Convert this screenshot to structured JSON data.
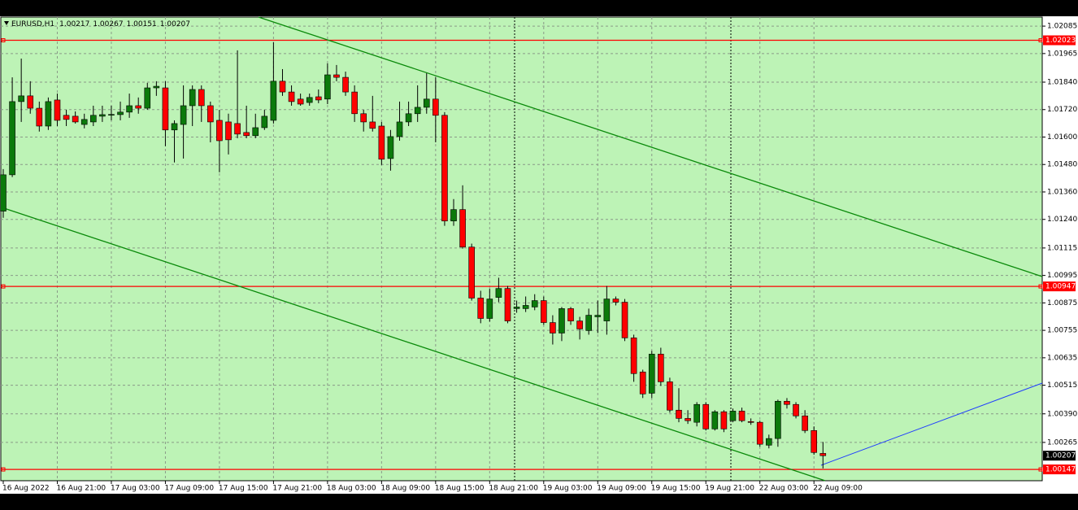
{
  "chart_data": {
    "type": "candlestick",
    "symbol": "EURUSD,H1",
    "categories": [
      "16 Aug 2022",
      null,
      null,
      null,
      null,
      null,
      "16 Aug 21:00",
      null,
      null,
      null,
      null,
      null,
      "17 Aug 03:00",
      null,
      null,
      null,
      null,
      null,
      "17 Aug 09:00",
      null,
      null,
      null,
      null,
      null,
      "17 Aug 15:00",
      null,
      null,
      null,
      null,
      null,
      "17 Aug 21:00",
      null,
      null,
      null,
      null,
      null,
      "18 Aug 03:00",
      null,
      null,
      null,
      null,
      null,
      "18 Aug 09:00",
      null,
      null,
      null,
      null,
      null,
      "18 Aug 15:00",
      null,
      null,
      null,
      null,
      null,
      "18 Aug 21:00",
      null,
      null,
      null,
      null,
      null,
      "19 Aug 03:00",
      null,
      null,
      null,
      null,
      null,
      "19 Aug 09:00",
      null,
      null,
      null,
      null,
      null,
      "19 Aug 15:00",
      null,
      null,
      null,
      null,
      null,
      "19 Aug 21:00",
      null,
      null,
      null,
      null,
      null,
      "22 Aug 03:00",
      null,
      null,
      null,
      null,
      null,
      "22 Aug 09:00",
      null
    ],
    "open": [
      1.01276,
      1.01435,
      1.01755,
      1.0178,
      1.01726,
      1.01648,
      1.01762,
      1.01695,
      1.01691,
      1.01655,
      1.01666,
      1.01691,
      1.01698,
      1.01698,
      1.01709,
      1.01737,
      1.01726,
      1.01815,
      1.01815,
      1.01631,
      1.01655,
      1.01737,
      1.01808,
      1.01737,
      1.01673,
      1.01666,
      1.01659,
      1.0162,
      1.01606,
      1.01641,
      1.01673,
      1.01844,
      1.01797,
      1.01766,
      1.01751,
      1.01776,
      1.01766,
      1.01872,
      1.01861,
      1.01797,
      1.01702,
      1.01666,
      1.01648,
      1.01506,
      1.01602,
      1.01666,
      1.01702,
      1.0173,
      1.01766,
      1.01695,
      1.01233,
      1.01283,
      1.01119,
      1.00896,
      1.00807,
      1.00899,
      1.00938,
      1.0085,
      1.0085,
      1.00857,
      1.00885,
      1.00789,
      1.00743,
      1.0085,
      1.00796,
      1.00754,
      1.00814,
      1.00796,
      1.00892,
      1.00878,
      1.00722,
      1.00573,
      1.0048,
      1.00651,
      1.0053,
      1.00406,
      1.0037,
      1.00353,
      1.00431,
      1.00324,
      1.00399,
      1.0036,
      1.00402,
      1.00356,
      1.00353,
      1.00253,
      1.00282,
      1.00445,
      1.00431,
      1.00381,
      1.00317,
      1.00217
    ],
    "high": [
      1.0146,
      1.01861,
      1.01943,
      1.01844,
      1.01755,
      1.01773,
      1.0179,
      1.01719,
      1.01712,
      1.01702,
      1.01737,
      1.01737,
      1.01737,
      1.01755,
      1.0179,
      1.01773,
      1.01837,
      1.01844,
      1.01844,
      1.01673,
      1.01826,
      1.01826,
      1.01826,
      1.01755,
      1.01719,
      1.01702,
      1.01979,
      1.01737,
      1.01702,
      1.01719,
      1.02014,
      1.01897,
      1.01826,
      1.0179,
      1.0179,
      1.01808,
      1.01922,
      1.01915,
      1.01886,
      1.01826,
      1.01719,
      1.0178,
      1.01666,
      1.01631,
      1.01755,
      1.01755,
      1.01826,
      1.01879,
      1.01861,
      1.01709,
      1.01329,
      1.01389,
      1.01134,
      1.00928,
      1.00938,
      1.00985,
      1.00949,
      1.00885,
      1.00903,
      1.00913,
      1.00903,
      1.00821,
      1.00857,
      1.00857,
      1.00814,
      1.0085,
      1.00885,
      1.00949,
      1.00903,
      1.00892,
      1.00736,
      1.00583,
      1.00665,
      1.00679,
      1.00548,
      1.00502,
      1.00406,
      1.00441,
      1.00441,
      1.00406,
      1.00406,
      1.00413,
      1.00417,
      1.0037,
      1.0036,
      1.00299,
      1.00452,
      1.00459,
      1.00441,
      1.00406,
      1.00335,
      1.00267
    ],
    "low": [
      1.01247,
      1.01425,
      1.01666,
      1.01702,
      1.01624,
      1.01631,
      1.01648,
      1.01648,
      1.01659,
      1.01638,
      1.01648,
      1.01666,
      1.01673,
      1.01673,
      1.01684,
      1.01702,
      1.01719,
      1.0178,
      1.0156,
      1.01489,
      1.01506,
      1.01648,
      1.01666,
      1.01577,
      1.01446,
      1.01524,
      1.01595,
      1.01595,
      1.01595,
      1.01631,
      1.01659,
      1.0178,
      1.01737,
      1.01737,
      1.01737,
      1.01748,
      1.01744,
      1.01844,
      1.0178,
      1.01666,
      1.01624,
      1.01624,
      1.01478,
      1.01453,
      1.01584,
      1.01648,
      1.01666,
      1.01702,
      1.01577,
      1.01212,
      1.01212,
      1.01112,
      1.00885,
      1.00786,
      1.00793,
      1.00878,
      1.00786,
      1.00832,
      1.00835,
      1.00843,
      1.00779,
      1.00693,
      1.00708,
      1.00779,
      1.00715,
      1.00736,
      1.00743,
      1.00736,
      1.00864,
      1.00708,
      1.0053,
      1.00459,
      1.00459,
      1.00512,
      1.00395,
      1.00353,
      1.00346,
      1.00335,
      1.00317,
      1.00317,
      1.0031,
      1.00353,
      1.00353,
      1.00342,
      1.00246,
      1.00239,
      1.00246,
      1.00413,
      1.0037,
      1.00306,
      1.00211,
      1.00151
    ],
    "close": [
      1.01435,
      1.01755,
      1.0178,
      1.01726,
      1.01648,
      1.01755,
      1.01673,
      1.01677,
      1.01666,
      1.01677,
      1.01695,
      1.01698,
      1.01699,
      1.01709,
      1.01737,
      1.01726,
      1.01815,
      1.01822,
      1.01631,
      1.01659,
      1.01737,
      1.01808,
      1.01737,
      1.01666,
      1.01584,
      1.01588,
      1.01613,
      1.01606,
      1.01641,
      1.01691,
      1.01844,
      1.01797,
      1.01755,
      1.01744,
      1.01773,
      1.01762,
      1.01872,
      1.01861,
      1.01797,
      1.01702,
      1.01666,
      1.01638,
      1.01503,
      1.01602,
      1.01666,
      1.01702,
      1.0173,
      1.01766,
      1.01695,
      1.01233,
      1.01283,
      1.01119,
      1.00896,
      1.00807,
      1.00892,
      1.00938,
      1.00796,
      1.00857,
      1.00864,
      1.00885,
      1.00789,
      1.00743,
      1.0085,
      1.00796,
      1.00761,
      1.00821,
      1.00821,
      1.00892,
      1.00878,
      1.00722,
      1.00566,
      1.00477,
      1.00651,
      1.0053,
      1.00406,
      1.0037,
      1.0036,
      1.00431,
      1.00324,
      1.00399,
      1.00324,
      1.00402,
      1.0036,
      1.00353,
      1.00257,
      1.00282,
      1.00445,
      1.00431,
      1.00381,
      1.00317,
      1.00221,
      1.00207
    ],
    "up_color": "#0b7a0b",
    "down_color": "#ff0000",
    "ylim": [
      1.00094,
      1.02128
    ],
    "yticks": [
      1.02085,
      1.01965,
      {
        "value": 1.0184,
        "label": "1.01840"
      },
      {
        "value": 1.0172,
        "label": "1.01720"
      },
      {
        "value": 1.016,
        "label": "1.01600"
      },
      {
        "value": 1.0148,
        "label": "1.01480"
      },
      {
        "value": 1.0136,
        "label": "1.01360"
      },
      {
        "value": 1.0124,
        "label": "1.01240"
      },
      1.01115,
      1.00995,
      1.00875,
      1.00755,
      1.00635,
      1.00515,
      {
        "value": 1.0039,
        "label": "1.00390"
      },
      1.00265
    ],
    "hlines": [
      {
        "value": 1.02023,
        "color": "#ff0000"
      },
      {
        "value": 1.00947,
        "color": "#ff0000"
      },
      {
        "value": 1.00147,
        "color": "#ff0000"
      }
    ],
    "grid": true
  }
}
